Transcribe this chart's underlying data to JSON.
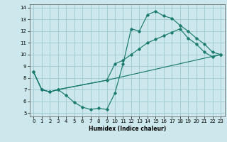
{
  "xlabel": "Humidex (Indice chaleur)",
  "ylabel": "",
  "bg_color": "#cce8ec",
  "grid_color": "#a0c8d0",
  "line_color": "#1a7a6e",
  "xlim": [
    -0.5,
    23.5
  ],
  "ylim": [
    4.7,
    14.3
  ],
  "xticks": [
    0,
    1,
    2,
    3,
    4,
    5,
    6,
    7,
    8,
    9,
    10,
    11,
    12,
    13,
    14,
    15,
    16,
    17,
    18,
    19,
    20,
    21,
    22,
    23
  ],
  "yticks": [
    5,
    6,
    7,
    8,
    9,
    10,
    11,
    12,
    13,
    14
  ],
  "line1_x": [
    0,
    1,
    2,
    3,
    4,
    5,
    6,
    7,
    8,
    9,
    10,
    11,
    12,
    13,
    14,
    15,
    16,
    17,
    18,
    19,
    20,
    21,
    22,
    23
  ],
  "line1_y": [
    8.5,
    7.0,
    6.8,
    7.0,
    6.5,
    5.9,
    5.5,
    5.3,
    5.4,
    5.3,
    6.7,
    9.2,
    12.2,
    12.0,
    13.4,
    13.7,
    13.3,
    13.1,
    12.5,
    12.0,
    11.4,
    10.9,
    10.2,
    10.0
  ],
  "line2_x": [
    0,
    1,
    2,
    3,
    9,
    10,
    11,
    12,
    13,
    14,
    15,
    16,
    17,
    18,
    19,
    20,
    21,
    22,
    23
  ],
  "line2_y": [
    8.5,
    7.0,
    6.8,
    7.0,
    7.8,
    9.2,
    9.5,
    10.0,
    10.5,
    11.0,
    11.3,
    11.6,
    11.9,
    12.2,
    11.4,
    10.9,
    10.2,
    9.8,
    10.0
  ],
  "line3_x": [
    0,
    1,
    2,
    3,
    9,
    23
  ],
  "line3_y": [
    8.5,
    7.0,
    6.8,
    7.0,
    7.8,
    10.0
  ]
}
